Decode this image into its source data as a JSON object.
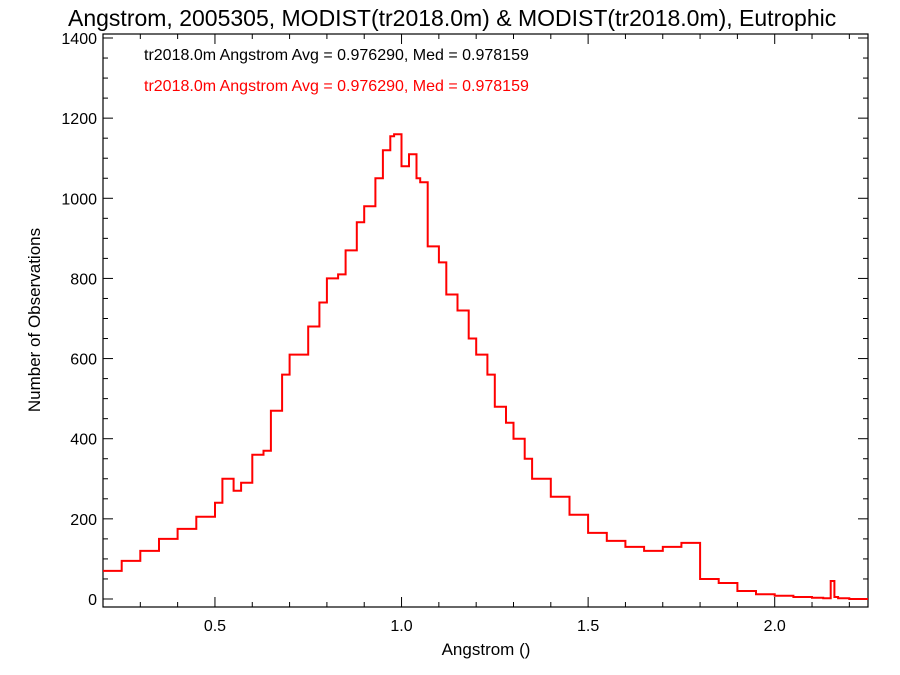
{
  "chart_data": {
    "type": "line",
    "style": "step histogram",
    "title": "Angstrom, 2005305, MODIST(tr2018.0m) & MODIST(tr2018.0m), Eutrophic",
    "xlabel": "Angstrom ()",
    "ylabel": "Number of Observations",
    "xlim": [
      0.2,
      2.25
    ],
    "ylim": [
      -20,
      1410
    ],
    "xticks": [
      0.5,
      1.0,
      1.5,
      2.0
    ],
    "xtick_labels": [
      "0.5",
      "1.0",
      "1.5",
      "2.0"
    ],
    "yticks": [
      0,
      200,
      400,
      600,
      800,
      1000,
      1200,
      1400
    ],
    "ytick_labels": [
      "0",
      "200",
      "400",
      "600",
      "800",
      "1000",
      "1200",
      "1400"
    ],
    "grid": false,
    "annotations": [
      {
        "text": "tr2018.0m Angstrom Avg = 0.976290, Med = 0.978159",
        "color": "#000000"
      },
      {
        "text": "tr2018.0m Angstrom Avg = 0.976290, Med = 0.978159",
        "color": "#ff0000"
      }
    ],
    "series": [
      {
        "color": "#ff0000",
        "x": [
          0.2,
          0.25,
          0.3,
          0.35,
          0.4,
          0.45,
          0.5,
          0.52,
          0.55,
          0.57,
          0.6,
          0.63,
          0.65,
          0.68,
          0.7,
          0.75,
          0.78,
          0.8,
          0.83,
          0.85,
          0.88,
          0.9,
          0.93,
          0.95,
          0.97,
          0.98,
          1.0,
          1.02,
          1.04,
          1.05,
          1.07,
          1.1,
          1.12,
          1.15,
          1.18,
          1.2,
          1.23,
          1.25,
          1.28,
          1.3,
          1.33,
          1.35,
          1.4,
          1.45,
          1.5,
          1.55,
          1.6,
          1.65,
          1.7,
          1.75,
          1.8,
          1.85,
          1.9,
          1.95,
          2.0,
          2.05,
          2.1,
          2.13,
          2.15,
          2.16,
          2.17,
          2.2,
          2.25
        ],
        "y": [
          70,
          95,
          120,
          150,
          175,
          205,
          240,
          300,
          270,
          290,
          360,
          370,
          470,
          560,
          610,
          680,
          740,
          800,
          810,
          870,
          940,
          980,
          1050,
          1120,
          1155,
          1160,
          1080,
          1110,
          1050,
          1040,
          880,
          840,
          760,
          720,
          650,
          610,
          560,
          480,
          440,
          400,
          350,
          300,
          255,
          210,
          165,
          145,
          130,
          120,
          130,
          140,
          50,
          40,
          20,
          12,
          8,
          5,
          3,
          2,
          45,
          5,
          2,
          0,
          0
        ]
      }
    ]
  }
}
